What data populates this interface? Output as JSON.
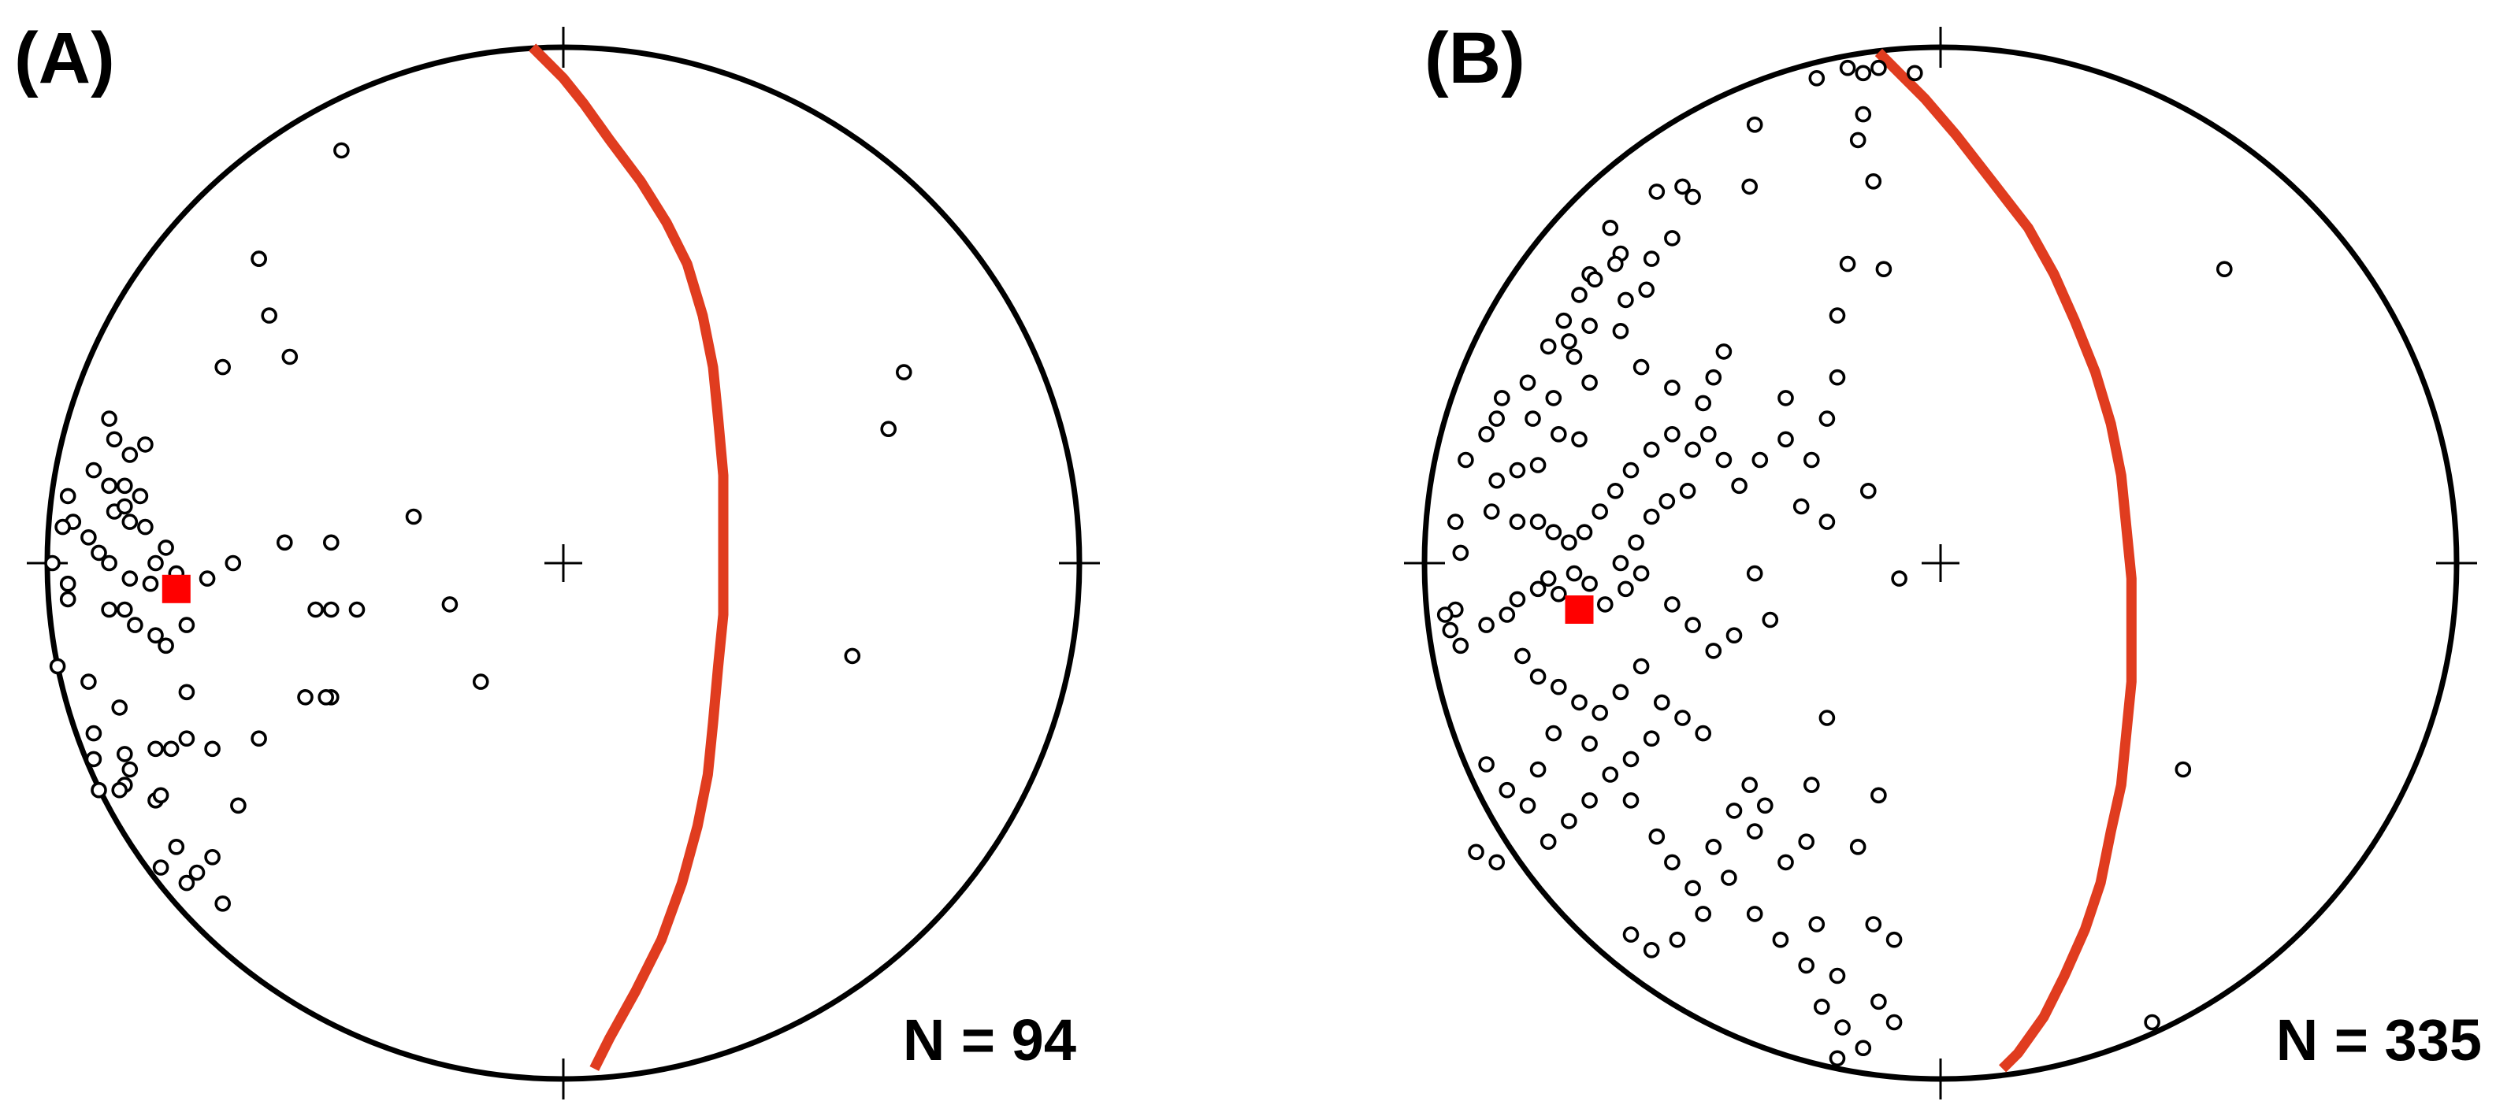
{
  "colors": {
    "primitive": "#000000",
    "great_circle": "#e03c1f",
    "mean_pole": "#ff0000",
    "pole": "#000000"
  },
  "chart_data": [
    {
      "type": "scatter",
      "projection": "equal-area stereonet (lower hemisphere)",
      "panel_label": "(A)",
      "n_label": "N = 94",
      "great_circle": [
        [
          -0.06,
          1.0
        ],
        [
          -0.03,
          0.97
        ],
        [
          0.0,
          0.94
        ],
        [
          0.04,
          0.89
        ],
        [
          0.09,
          0.82
        ],
        [
          0.15,
          0.74
        ],
        [
          0.2,
          0.66
        ],
        [
          0.24,
          0.58
        ],
        [
          0.27,
          0.48
        ],
        [
          0.29,
          0.38
        ],
        [
          0.3,
          0.28
        ],
        [
          0.31,
          0.17
        ],
        [
          0.31,
          0.05
        ],
        [
          0.31,
          -0.03
        ],
        [
          0.31,
          -0.1
        ],
        [
          0.3,
          -0.2
        ],
        [
          0.29,
          -0.31
        ],
        [
          0.28,
          -0.41
        ],
        [
          0.26,
          -0.51
        ],
        [
          0.23,
          -0.62
        ],
        [
          0.19,
          -0.73
        ],
        [
          0.14,
          -0.83
        ],
        [
          0.09,
          -0.92
        ],
        [
          0.06,
          -0.98
        ]
      ],
      "mean_pole": [
        -0.75,
        -0.05
      ],
      "poles": [
        [
          -0.43,
          0.8
        ],
        [
          -0.59,
          0.59
        ],
        [
          -0.59,
          0.59
        ],
        [
          -0.57,
          0.48
        ],
        [
          -0.66,
          0.38
        ],
        [
          -0.53,
          0.4
        ],
        [
          -0.29,
          0.09
        ],
        [
          -0.96,
          0.13
        ],
        [
          -0.95,
          0.08
        ],
        [
          -0.97,
          0.07
        ],
        [
          -0.92,
          0.05
        ],
        [
          -0.9,
          0.02
        ],
        [
          -0.88,
          0.0
        ],
        [
          -0.99,
          0.0
        ],
        [
          -0.96,
          -0.04
        ],
        [
          -0.84,
          0.08
        ],
        [
          -0.87,
          0.1
        ],
        [
          -0.85,
          0.11
        ],
        [
          -0.85,
          0.15
        ],
        [
          -0.88,
          0.15
        ],
        [
          -0.82,
          0.13
        ],
        [
          -0.91,
          0.18
        ],
        [
          -0.84,
          0.21
        ],
        [
          -0.81,
          0.23
        ],
        [
          -0.87,
          0.24
        ],
        [
          -0.88,
          0.28
        ],
        [
          -0.81,
          0.07
        ],
        [
          -0.77,
          0.03
        ],
        [
          -0.79,
          0.0
        ],
        [
          -0.75,
          -0.02
        ],
        [
          -0.8,
          -0.04
        ],
        [
          -0.84,
          -0.03
        ],
        [
          -0.85,
          -0.09
        ],
        [
          -0.88,
          -0.09
        ],
        [
          -0.83,
          -0.12
        ],
        [
          -0.79,
          -0.14
        ],
        [
          -0.77,
          -0.16
        ],
        [
          -0.73,
          -0.12
        ],
        [
          -0.69,
          -0.03
        ],
        [
          -0.64,
          0.0
        ],
        [
          -0.54,
          0.04
        ],
        [
          -0.48,
          -0.09
        ],
        [
          -0.45,
          0.04
        ],
        [
          -0.45,
          -0.09
        ],
        [
          -0.4,
          -0.09
        ],
        [
          -0.96,
          -0.07
        ],
        [
          -0.98,
          -0.2
        ],
        [
          -0.92,
          -0.23
        ],
        [
          -0.86,
          -0.28
        ],
        [
          -0.91,
          -0.33
        ],
        [
          -0.91,
          -0.38
        ],
        [
          -0.85,
          -0.37
        ],
        [
          -0.79,
          -0.36
        ],
        [
          -0.76,
          -0.36
        ],
        [
          -0.84,
          -0.4
        ],
        [
          -0.73,
          -0.34
        ],
        [
          -0.68,
          -0.36
        ],
        [
          -0.59,
          -0.34
        ],
        [
          -0.73,
          -0.25
        ],
        [
          -0.63,
          -0.47
        ],
        [
          -0.85,
          -0.43
        ],
        [
          -0.86,
          -0.44
        ],
        [
          -0.9,
          -0.44
        ],
        [
          -0.79,
          -0.46
        ],
        [
          -0.78,
          -0.45
        ],
        [
          -0.75,
          -0.55
        ],
        [
          -0.78,
          -0.59
        ],
        [
          -0.73,
          -0.62
        ],
        [
          -0.71,
          -0.6
        ],
        [
          -0.68,
          -0.57
        ],
        [
          -0.66,
          -0.66
        ],
        [
          -0.5,
          -0.26
        ],
        [
          -0.45,
          -0.26
        ],
        [
          -0.46,
          -0.26
        ],
        [
          -0.22,
          -0.08
        ],
        [
          -0.16,
          -0.23
        ],
        [
          0.66,
          0.37
        ],
        [
          0.63,
          0.26
        ],
        [
          0.56,
          -0.18
        ]
      ]
    },
    {
      "type": "scatter",
      "projection": "equal-area stereonet (lower hemisphere)",
      "panel_label": "(B)",
      "n_label": "N = 335",
      "great_circle": [
        [
          -0.12,
          0.99
        ],
        [
          -0.08,
          0.95
        ],
        [
          -0.03,
          0.9
        ],
        [
          0.03,
          0.83
        ],
        [
          0.1,
          0.74
        ],
        [
          0.17,
          0.65
        ],
        [
          0.22,
          0.56
        ],
        [
          0.26,
          0.47
        ],
        [
          0.3,
          0.37
        ],
        [
          0.33,
          0.27
        ],
        [
          0.35,
          0.17
        ],
        [
          0.36,
          0.07
        ],
        [
          0.37,
          -0.03
        ],
        [
          0.37,
          -0.13
        ],
        [
          0.37,
          -0.23
        ],
        [
          0.36,
          -0.33
        ],
        [
          0.35,
          -0.43
        ],
        [
          0.33,
          -0.52
        ],
        [
          0.31,
          -0.62
        ],
        [
          0.28,
          -0.71
        ],
        [
          0.24,
          -0.8
        ],
        [
          0.2,
          -0.88
        ],
        [
          0.15,
          -0.95
        ],
        [
          0.12,
          -0.98
        ]
      ],
      "mean_pole": [
        -0.7,
        -0.09
      ],
      "poles": [
        [
          -0.12,
          0.96
        ],
        [
          -0.15,
          0.95
        ],
        [
          -0.18,
          0.96
        ],
        [
          -0.24,
          0.94
        ],
        [
          -0.15,
          0.87
        ],
        [
          -0.16,
          0.82
        ],
        [
          -0.13,
          0.74
        ],
        [
          -0.05,
          0.95
        ],
        [
          -0.36,
          0.85
        ],
        [
          -0.37,
          0.73
        ],
        [
          -0.48,
          0.71
        ],
        [
          -0.5,
          0.73
        ],
        [
          -0.55,
          0.72
        ],
        [
          -0.52,
          0.63
        ],
        [
          -0.56,
          0.59
        ],
        [
          -0.62,
          0.6
        ],
        [
          -0.63,
          0.58
        ],
        [
          -0.68,
          0.56
        ],
        [
          -0.64,
          0.65
        ],
        [
          -0.67,
          0.55
        ],
        [
          -0.57,
          0.53
        ],
        [
          -0.61,
          0.51
        ],
        [
          -0.7,
          0.52
        ],
        [
          -0.73,
          0.47
        ],
        [
          -0.71,
          0.4
        ],
        [
          -0.68,
          0.35
        ],
        [
          -0.75,
          0.32
        ],
        [
          -0.79,
          0.28
        ],
        [
          -0.85,
          0.32
        ],
        [
          -0.8,
          0.35
        ],
        [
          -0.76,
          0.42
        ],
        [
          -0.72,
          0.43
        ],
        [
          -0.74,
          0.25
        ],
        [
          -0.7,
          0.24
        ],
        [
          -0.78,
          0.19
        ],
        [
          -0.82,
          0.18
        ],
        [
          -0.86,
          0.16
        ],
        [
          -0.87,
          0.1
        ],
        [
          -0.82,
          0.08
        ],
        [
          -0.78,
          0.08
        ],
        [
          -0.75,
          0.06
        ],
        [
          -0.72,
          0.04
        ],
        [
          -0.69,
          0.06
        ],
        [
          -0.66,
          0.1
        ],
        [
          -0.63,
          0.14
        ],
        [
          -0.6,
          0.18
        ],
        [
          -0.56,
          0.22
        ],
        [
          -0.52,
          0.25
        ],
        [
          -0.48,
          0.22
        ],
        [
          -0.45,
          0.25
        ],
        [
          -0.42,
          0.2
        ],
        [
          -0.39,
          0.15
        ],
        [
          -0.35,
          0.2
        ],
        [
          -0.3,
          0.32
        ],
        [
          -0.3,
          0.24
        ],
        [
          -0.42,
          0.41
        ],
        [
          -0.44,
          0.36
        ],
        [
          -0.46,
          0.31
        ],
        [
          -0.52,
          0.34
        ],
        [
          -0.58,
          0.38
        ],
        [
          -0.62,
          0.45
        ],
        [
          -0.68,
          0.46
        ],
        [
          -0.86,
          0.28
        ],
        [
          -0.88,
          0.25
        ],
        [
          -0.92,
          0.2
        ],
        [
          -0.94,
          0.08
        ],
        [
          -0.93,
          0.02
        ],
        [
          -0.94,
          -0.09
        ],
        [
          -0.96,
          -0.1
        ],
        [
          -0.95,
          -0.13
        ],
        [
          -0.93,
          -0.16
        ],
        [
          -0.88,
          -0.12
        ],
        [
          -0.84,
          -0.1
        ],
        [
          -0.82,
          -0.07
        ],
        [
          -0.78,
          -0.05
        ],
        [
          -0.76,
          -0.03
        ],
        [
          -0.74,
          -0.06
        ],
        [
          -0.71,
          -0.02
        ],
        [
          -0.68,
          -0.04
        ],
        [
          -0.65,
          -0.08
        ],
        [
          -0.61,
          -0.05
        ],
        [
          -0.58,
          -0.02
        ],
        [
          -0.52,
          -0.08
        ],
        [
          -0.48,
          -0.12
        ],
        [
          -0.44,
          -0.17
        ],
        [
          -0.4,
          -0.14
        ],
        [
          -0.36,
          -0.02
        ],
        [
          -0.33,
          -0.11
        ],
        [
          -0.81,
          -0.18
        ],
        [
          -0.78,
          -0.22
        ],
        [
          -0.74,
          -0.24
        ],
        [
          -0.7,
          -0.27
        ],
        [
          -0.66,
          -0.29
        ],
        [
          -0.62,
          -0.25
        ],
        [
          -0.58,
          -0.2
        ],
        [
          -0.54,
          -0.27
        ],
        [
          -0.5,
          -0.3
        ],
        [
          -0.46,
          -0.33
        ],
        [
          -0.56,
          -0.34
        ],
        [
          -0.6,
          -0.38
        ],
        [
          -0.64,
          -0.41
        ],
        [
          -0.68,
          -0.46
        ],
        [
          -0.72,
          -0.5
        ],
        [
          -0.76,
          -0.54
        ],
        [
          -0.8,
          -0.47
        ],
        [
          -0.84,
          -0.44
        ],
        [
          -0.88,
          -0.39
        ],
        [
          -0.86,
          -0.58
        ],
        [
          -0.9,
          -0.56
        ],
        [
          -0.78,
          -0.4
        ],
        [
          -0.75,
          -0.33
        ],
        [
          -0.68,
          -0.35
        ],
        [
          -0.6,
          -0.46
        ],
        [
          -0.55,
          -0.53
        ],
        [
          -0.52,
          -0.58
        ],
        [
          -0.48,
          -0.63
        ],
        [
          -0.44,
          -0.55
        ],
        [
          -0.4,
          -0.48
        ],
        [
          -0.37,
          -0.43
        ],
        [
          -0.41,
          -0.61
        ],
        [
          -0.46,
          -0.68
        ],
        [
          -0.51,
          -0.73
        ],
        [
          -0.56,
          -0.75
        ],
        [
          -0.6,
          -0.72
        ],
        [
          -0.36,
          -0.68
        ],
        [
          -0.31,
          -0.73
        ],
        [
          -0.24,
          -0.7
        ],
        [
          -0.2,
          -0.8
        ],
        [
          -0.19,
          -0.9
        ],
        [
          -0.23,
          -0.86
        ],
        [
          -0.26,
          -0.78
        ],
        [
          -0.12,
          -0.85
        ],
        [
          -0.09,
          -0.73
        ],
        [
          -0.13,
          -0.7
        ],
        [
          -0.15,
          -0.94
        ],
        [
          -0.2,
          -0.96
        ],
        [
          -0.09,
          -0.89
        ],
        [
          -0.34,
          -0.47
        ],
        [
          -0.25,
          -0.43
        ],
        [
          -0.22,
          -0.3
        ],
        [
          -0.12,
          -0.45
        ],
        [
          -0.3,
          -0.58
        ],
        [
          -0.36,
          -0.52
        ],
        [
          -0.26,
          -0.54
        ],
        [
          -0.16,
          -0.55
        ],
        [
          -0.11,
          0.57
        ],
        [
          -0.18,
          0.58
        ],
        [
          -0.2,
          0.48
        ],
        [
          -0.2,
          0.36
        ],
        [
          -0.22,
          0.28
        ],
        [
          -0.25,
          0.2
        ],
        [
          -0.27,
          0.11
        ],
        [
          -0.22,
          0.08
        ],
        [
          -0.14,
          0.14
        ],
        [
          -0.08,
          -0.03
        ],
        [
          -0.49,
          0.14
        ],
        [
          -0.53,
          0.12
        ],
        [
          -0.56,
          0.09
        ],
        [
          -0.59,
          0.04
        ],
        [
          -0.62,
          0.0
        ],
        [
          0.47,
          -0.4
        ],
        [
          0.55,
          0.57
        ],
        [
          0.41,
          -0.89
        ]
      ]
    }
  ]
}
